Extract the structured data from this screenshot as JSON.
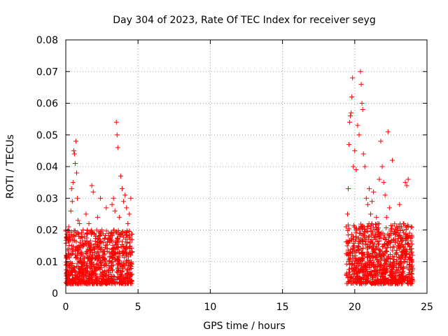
{
  "chart_data": {
    "type": "scatter",
    "title": "Day 304 of 2023, Rate Of TEC Index for receiver seyg",
    "xlabel": "GPS time / hours",
    "ylabel": "ROTI / TECUs",
    "xlim": [
      0,
      25
    ],
    "ylim": [
      0,
      0.08
    ],
    "x_ticks": [
      0,
      5,
      10,
      15,
      20,
      25
    ],
    "y_ticks": [
      0,
      0.01,
      0.02,
      0.03,
      0.04,
      0.05,
      0.06,
      0.07,
      0.08
    ],
    "x_tick_labels": [
      "0",
      "5",
      "10",
      "15",
      "20",
      "25"
    ],
    "y_tick_labels": [
      "0",
      "0.01",
      "0.02",
      "0.03",
      "0.04",
      "0.05",
      "0.06",
      "0.07",
      "0.08"
    ],
    "grid": true,
    "marker": "plus",
    "color": "#ff0000",
    "series": [
      {
        "values_xy": [
          [
            0.05,
            0.012
          ],
          [
            0.1,
            0.009
          ],
          [
            0.15,
            0.014
          ],
          [
            0.2,
            0.021
          ],
          [
            0.25,
            0.008
          ],
          [
            0.3,
            0.017
          ],
          [
            0.35,
            0.026
          ],
          [
            0.4,
            0.033
          ],
          [
            0.45,
            0.029
          ],
          [
            0.5,
            0.035
          ],
          [
            0.55,
            0.045
          ],
          [
            0.6,
            0.044
          ],
          [
            0.65,
            0.041
          ],
          [
            0.7,
            0.048
          ],
          [
            0.75,
            0.038
          ],
          [
            0.8,
            0.03
          ],
          [
            0.85,
            0.023
          ],
          [
            0.9,
            0.018
          ],
          [
            0.95,
            0.022
          ],
          [
            1.0,
            0.016
          ],
          [
            1.1,
            0.013
          ],
          [
            1.2,
            0.02
          ],
          [
            1.3,
            0.011
          ],
          [
            1.4,
            0.025
          ],
          [
            1.5,
            0.019
          ],
          [
            1.6,
            0.022
          ],
          [
            1.7,
            0.015
          ],
          [
            1.8,
            0.034
          ],
          [
            1.9,
            0.032
          ],
          [
            2.0,
            0.014
          ],
          [
            2.1,
            0.018
          ],
          [
            2.2,
            0.024
          ],
          [
            2.3,
            0.012
          ],
          [
            2.4,
            0.03
          ],
          [
            2.5,
            0.02
          ],
          [
            2.6,
            0.016
          ],
          [
            2.7,
            0.011
          ],
          [
            2.8,
            0.027
          ],
          [
            2.9,
            0.017
          ],
          [
            3.0,
            0.013
          ],
          [
            3.1,
            0.019
          ],
          [
            3.2,
            0.028
          ],
          [
            3.3,
            0.03
          ],
          [
            3.4,
            0.026
          ],
          [
            3.5,
            0.054
          ],
          [
            3.55,
            0.05
          ],
          [
            3.6,
            0.046
          ],
          [
            3.7,
            0.024
          ],
          [
            3.8,
            0.037
          ],
          [
            3.9,
            0.033
          ],
          [
            4.0,
            0.029
          ],
          [
            4.1,
            0.031
          ],
          [
            4.2,
            0.027
          ],
          [
            4.3,
            0.022
          ],
          [
            4.4,
            0.025
          ],
          [
            4.5,
            0.03
          ],
          [
            19.4,
            0.021
          ],
          [
            19.5,
            0.025
          ],
          [
            19.55,
            0.033
          ],
          [
            19.6,
            0.047
          ],
          [
            19.65,
            0.054
          ],
          [
            19.7,
            0.056
          ],
          [
            19.75,
            0.057
          ],
          [
            19.8,
            0.062
          ],
          [
            19.85,
            0.068
          ],
          [
            19.9,
            0.04
          ],
          [
            20.0,
            0.045
          ],
          [
            20.1,
            0.039
          ],
          [
            20.2,
            0.053
          ],
          [
            20.3,
            0.05
          ],
          [
            20.4,
            0.07
          ],
          [
            20.45,
            0.066
          ],
          [
            20.5,
            0.06
          ],
          [
            20.55,
            0.058
          ],
          [
            20.6,
            0.044
          ],
          [
            20.7,
            0.04
          ],
          [
            20.8,
            0.03
          ],
          [
            20.9,
            0.028
          ],
          [
            21.0,
            0.033
          ],
          [
            21.1,
            0.025
          ],
          [
            21.2,
            0.029
          ],
          [
            21.3,
            0.032
          ],
          [
            21.4,
            0.02
          ],
          [
            21.5,
            0.024
          ],
          [
            21.6,
            0.022
          ],
          [
            21.7,
            0.036
          ],
          [
            21.8,
            0.048
          ],
          [
            21.9,
            0.04
          ],
          [
            22.0,
            0.035
          ],
          [
            22.1,
            0.031
          ],
          [
            22.2,
            0.024
          ],
          [
            22.3,
            0.051
          ],
          [
            22.4,
            0.027
          ],
          [
            22.5,
            0.02
          ],
          [
            22.6,
            0.042
          ],
          [
            22.7,
            0.017
          ],
          [
            22.8,
            0.016
          ],
          [
            22.9,
            0.021
          ],
          [
            23.0,
            0.018
          ],
          [
            23.1,
            0.028
          ],
          [
            23.2,
            0.015
          ],
          [
            23.3,
            0.013
          ],
          [
            23.4,
            0.022
          ],
          [
            23.5,
            0.035
          ],
          [
            23.6,
            0.034
          ],
          [
            23.7,
            0.036
          ],
          [
            23.8,
            0.019
          ],
          [
            23.9,
            0.014
          ],
          [
            24.0,
            0.012
          ]
        ],
        "dense_bands": [
          {
            "x_range": [
              0,
              4.6
            ],
            "y_range": [
              0.003,
              0.02
            ],
            "count": 900
          },
          {
            "x_range": [
              19.4,
              24.0
            ],
            "y_range": [
              0.003,
              0.022
            ],
            "count": 900
          }
        ]
      }
    ]
  }
}
